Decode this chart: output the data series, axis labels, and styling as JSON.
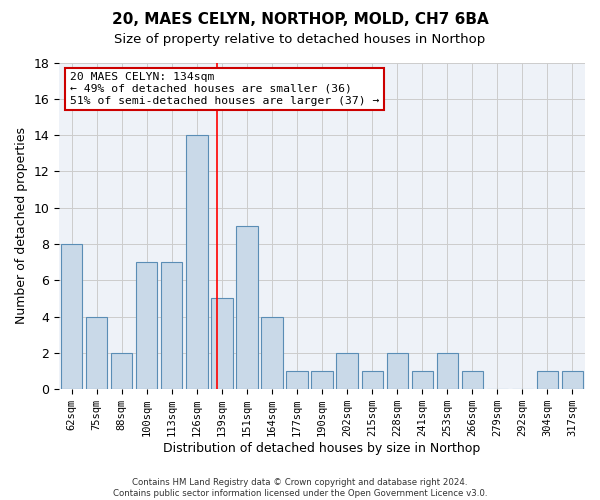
{
  "title1": "20, MAES CELYN, NORTHOP, MOLD, CH7 6BA",
  "title2": "Size of property relative to detached houses in Northop",
  "xlabel": "Distribution of detached houses by size in Northop",
  "ylabel": "Number of detached properties",
  "bins": [
    "62sqm",
    "75sqm",
    "88sqm",
    "100sqm",
    "113sqm",
    "126sqm",
    "139sqm",
    "151sqm",
    "164sqm",
    "177sqm",
    "190sqm",
    "202sqm",
    "215sqm",
    "228sqm",
    "241sqm",
    "253sqm",
    "266sqm",
    "279sqm",
    "292sqm",
    "304sqm",
    "317sqm"
  ],
  "counts": [
    8,
    4,
    2,
    7,
    7,
    14,
    5,
    9,
    4,
    1,
    1,
    2,
    1,
    2,
    1,
    2,
    1,
    0,
    0,
    1,
    1
  ],
  "bar_color": "#c9d9e8",
  "bar_edge_color": "#5a8db5",
  "grid_color": "#cccccc",
  "bg_color": "#eef2f8",
  "red_line_x": 5.82,
  "annotation_line1": "20 MAES CELYN: 134sqm",
  "annotation_line2": "← 49% of detached houses are smaller (36)",
  "annotation_line3": "51% of semi-detached houses are larger (37) →",
  "annotation_box_color": "#ffffff",
  "annotation_edge_color": "#cc0000",
  "footer1": "Contains HM Land Registry data © Crown copyright and database right 2024.",
  "footer2": "Contains public sector information licensed under the Open Government Licence v3.0.",
  "ylim": [
    0,
    18
  ],
  "yticks": [
    0,
    2,
    4,
    6,
    8,
    10,
    12,
    14,
    16,
    18
  ]
}
